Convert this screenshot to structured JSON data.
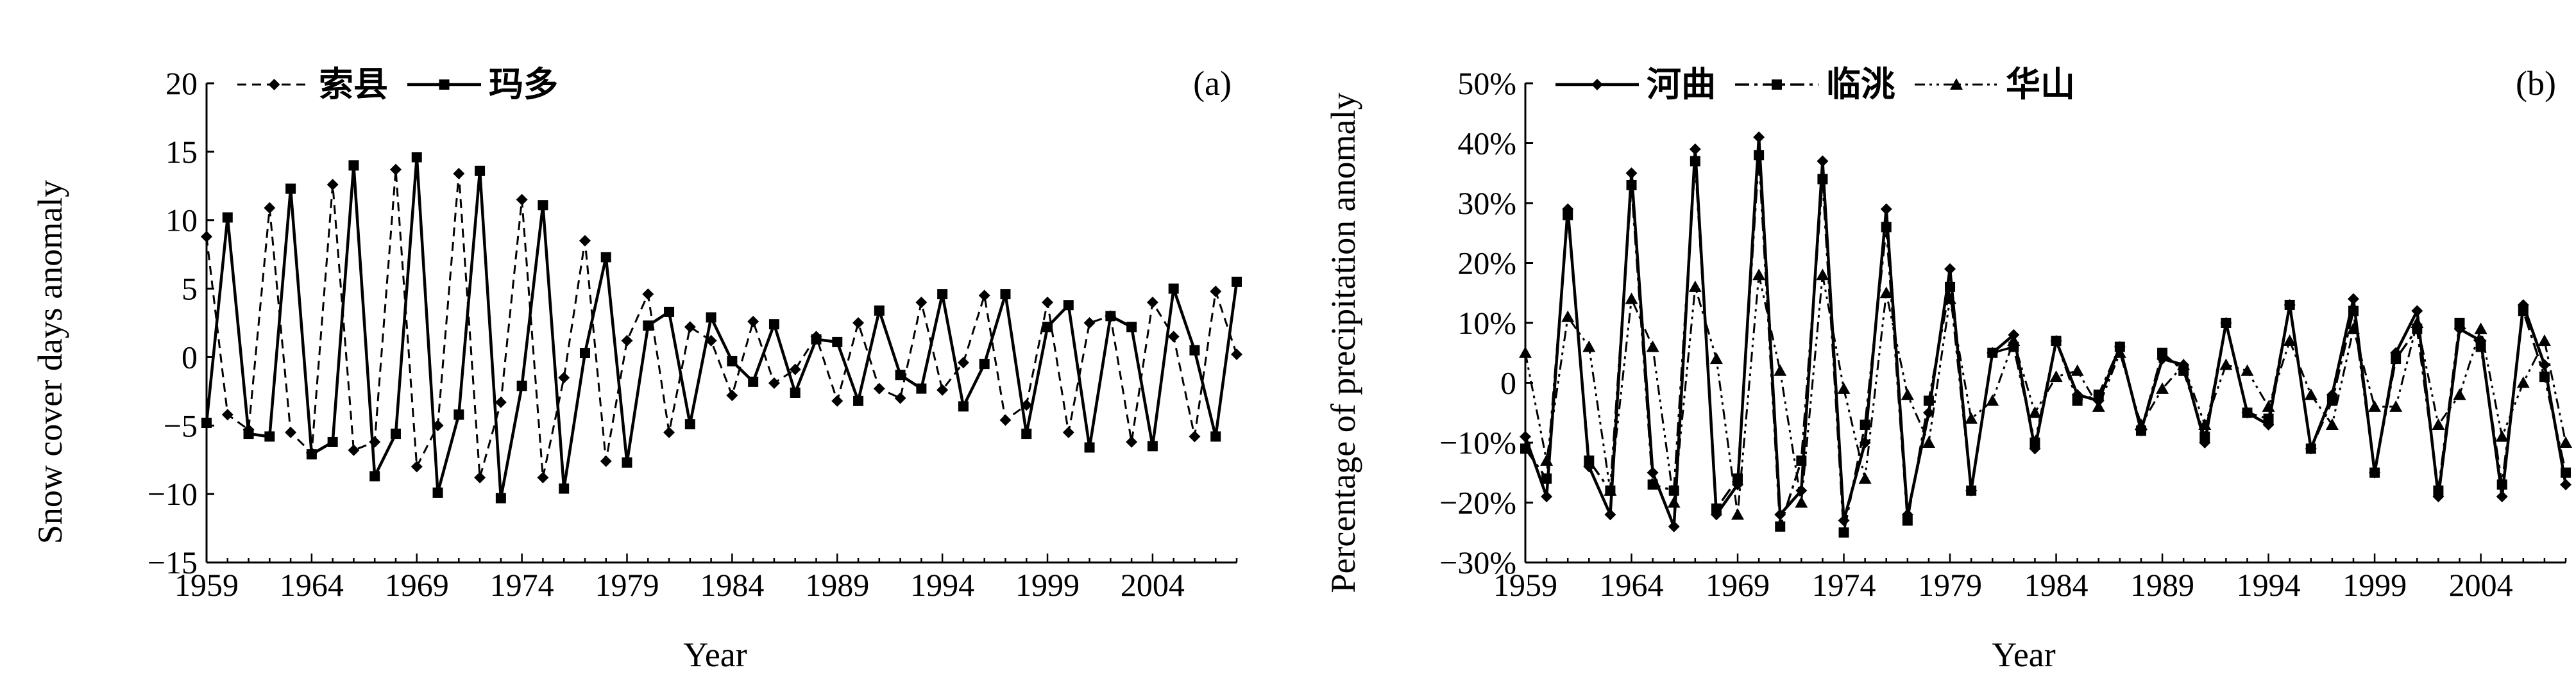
{
  "chart_data": [
    {
      "type": "line",
      "panel_label": "(a)",
      "xlabel": "Year",
      "ylabel": "Snow cover days anomaly",
      "xlim": [
        1959,
        2008
      ],
      "ylim": [
        -15,
        20
      ],
      "x_ticks": [
        1959,
        1964,
        1969,
        1974,
        1979,
        1984,
        1989,
        1994,
        1999,
        2004
      ],
      "x_tick_labels": [
        "1959",
        "1964",
        "1969",
        "1974",
        "1979",
        "1984",
        "1989",
        "1994",
        "1999",
        "2004"
      ],
      "y_ticks": [
        -15,
        -10,
        -5,
        0,
        5,
        10,
        15,
        20
      ],
      "y_tick_labels": [
        "−15",
        "−10",
        "−5",
        "0",
        "5",
        "10",
        "15",
        "20"
      ],
      "grid": false,
      "legend_position": "top-left",
      "x": [
        1959,
        1960,
        1961,
        1962,
        1963,
        1964,
        1965,
        1966,
        1967,
        1968,
        1969,
        1970,
        1971,
        1972,
        1973,
        1974,
        1975,
        1976,
        1977,
        1978,
        1979,
        1980,
        1981,
        1982,
        1983,
        1984,
        1985,
        1986,
        1987,
        1988,
        1989,
        1990,
        1991,
        1992,
        1993,
        1994,
        1995,
        1996,
        1997,
        1998,
        1999,
        2000,
        2001,
        2002,
        2003,
        2004,
        2005,
        2006,
        2007,
        2008
      ],
      "series": [
        {
          "name": "索县",
          "style": "dashed",
          "marker": "diamond",
          "color": "#000000",
          "values": [
            8.8,
            -4.2,
            -5.3,
            10.9,
            -5.5,
            -7.0,
            12.6,
            -6.8,
            -6.2,
            13.7,
            -8.0,
            -5.0,
            13.4,
            -8.8,
            -3.3,
            11.5,
            -8.8,
            -1.5,
            8.5,
            -7.6,
            1.2,
            4.6,
            -5.5,
            2.2,
            1.2,
            -2.8,
            2.6,
            -1.9,
            -0.9,
            1.5,
            -3.2,
            2.5,
            -2.3,
            -3.0,
            4.0,
            -2.4,
            -0.4,
            4.5,
            -4.6,
            -3.5,
            4.0,
            -5.5,
            2.5,
            3.0,
            -6.2,
            4.0,
            1.5,
            -5.8,
            4.8,
            0.2
          ]
        },
        {
          "name": "玛多",
          "style": "solid",
          "marker": "square",
          "color": "#000000",
          "values": [
            -4.8,
            10.2,
            -5.6,
            -5.8,
            12.3,
            -7.1,
            -6.2,
            14.0,
            -8.7,
            -5.6,
            14.6,
            -9.9,
            -4.2,
            13.6,
            -10.3,
            -2.1,
            11.1,
            -9.6,
            0.3,
            7.3,
            -7.7,
            2.3,
            3.3,
            -4.9,
            2.9,
            -0.3,
            -1.8,
            2.4,
            -2.6,
            1.3,
            1.1,
            -3.2,
            3.4,
            -1.3,
            -2.3,
            4.6,
            -3.6,
            -0.5,
            4.6,
            -5.6,
            2.2,
            3.8,
            -6.6,
            3.0,
            2.2,
            -6.5,
            5.0,
            0.5,
            -5.8,
            5.5
          ]
        }
      ]
    },
    {
      "type": "line",
      "panel_label": "(b)",
      "xlabel": "Year",
      "ylabel": "Percentage of precipitation anomaly",
      "xlim": [
        1959,
        2008
      ],
      "ylim": [
        -30,
        50
      ],
      "x_ticks": [
        1959,
        1964,
        1969,
        1974,
        1979,
        1984,
        1989,
        1994,
        1999,
        2004
      ],
      "x_tick_labels": [
        "1959",
        "1964",
        "1969",
        "1974",
        "1979",
        "1984",
        "1989",
        "1994",
        "1999",
        "2004"
      ],
      "y_ticks": [
        -30,
        -20,
        -10,
        0,
        10,
        20,
        30,
        40,
        50
      ],
      "y_tick_labels": [
        "−30%",
        "−20%",
        "−10%",
        "0",
        "10%",
        "20%",
        "30%",
        "40%",
        "50%"
      ],
      "grid": false,
      "legend_position": "top-left",
      "x": [
        1959,
        1960,
        1961,
        1962,
        1963,
        1964,
        1965,
        1966,
        1967,
        1968,
        1969,
        1970,
        1971,
        1972,
        1973,
        1974,
        1975,
        1976,
        1977,
        1978,
        1979,
        1980,
        1981,
        1982,
        1983,
        1984,
        1985,
        1986,
        1987,
        1988,
        1989,
        1990,
        1991,
        1992,
        1993,
        1994,
        1995,
        1996,
        1997,
        1998,
        1999,
        2000,
        2001,
        2002,
        2003,
        2004,
        2005,
        2006,
        2007,
        2008
      ],
      "series": [
        {
          "name": "河曲",
          "style": "solid",
          "marker": "diamond",
          "color": "#000000",
          "values": [
            -9,
            -19,
            29,
            -14,
            -22,
            35,
            -15,
            -24,
            39,
            -22,
            -17,
            41,
            -22,
            -18,
            37,
            -23,
            -10,
            29,
            -22,
            -5,
            19,
            -18,
            5,
            8,
            -11,
            7,
            -2,
            -3,
            6,
            -8,
            4,
            3,
            -10,
            10,
            -5,
            -7,
            13,
            -11,
            -2,
            14,
            -15,
            5,
            12,
            -19,
            9,
            7,
            -19,
            13,
            3,
            -17
          ]
        },
        {
          "name": "临洮",
          "style": "dash-dot",
          "marker": "square",
          "color": "#000000",
          "values": [
            -11,
            -16,
            28,
            -13,
            -18,
            33,
            -17,
            -18,
            37,
            -21,
            -16,
            38,
            -24,
            -13,
            34,
            -25,
            -7,
            26,
            -23,
            -3,
            16,
            -18,
            5,
            6,
            -10,
            7,
            -3,
            -2,
            6,
            -8,
            5,
            2,
            -9,
            10,
            -5,
            -6,
            13,
            -11,
            -3,
            12,
            -15,
            4,
            9,
            -18,
            10,
            6,
            -17,
            12,
            1,
            -15
          ]
        },
        {
          "name": "华山",
          "style": "dash-dot-dot",
          "marker": "triangle",
          "color": "#000000",
          "values": [
            5,
            -13,
            11,
            6,
            -18,
            14,
            6,
            -20,
            16,
            4,
            -22,
            18,
            2,
            -20,
            18,
            -1,
            -16,
            15,
            -2,
            -10,
            14,
            -6,
            -3,
            7,
            -5,
            1,
            2,
            -4,
            5,
            -7,
            -1,
            3,
            -7,
            3,
            2,
            -4,
            7,
            -2,
            -7,
            9,
            -4,
            -4,
            10,
            -7,
            -2,
            9,
            -9,
            0,
            7,
            -10
          ]
        }
      ]
    }
  ]
}
